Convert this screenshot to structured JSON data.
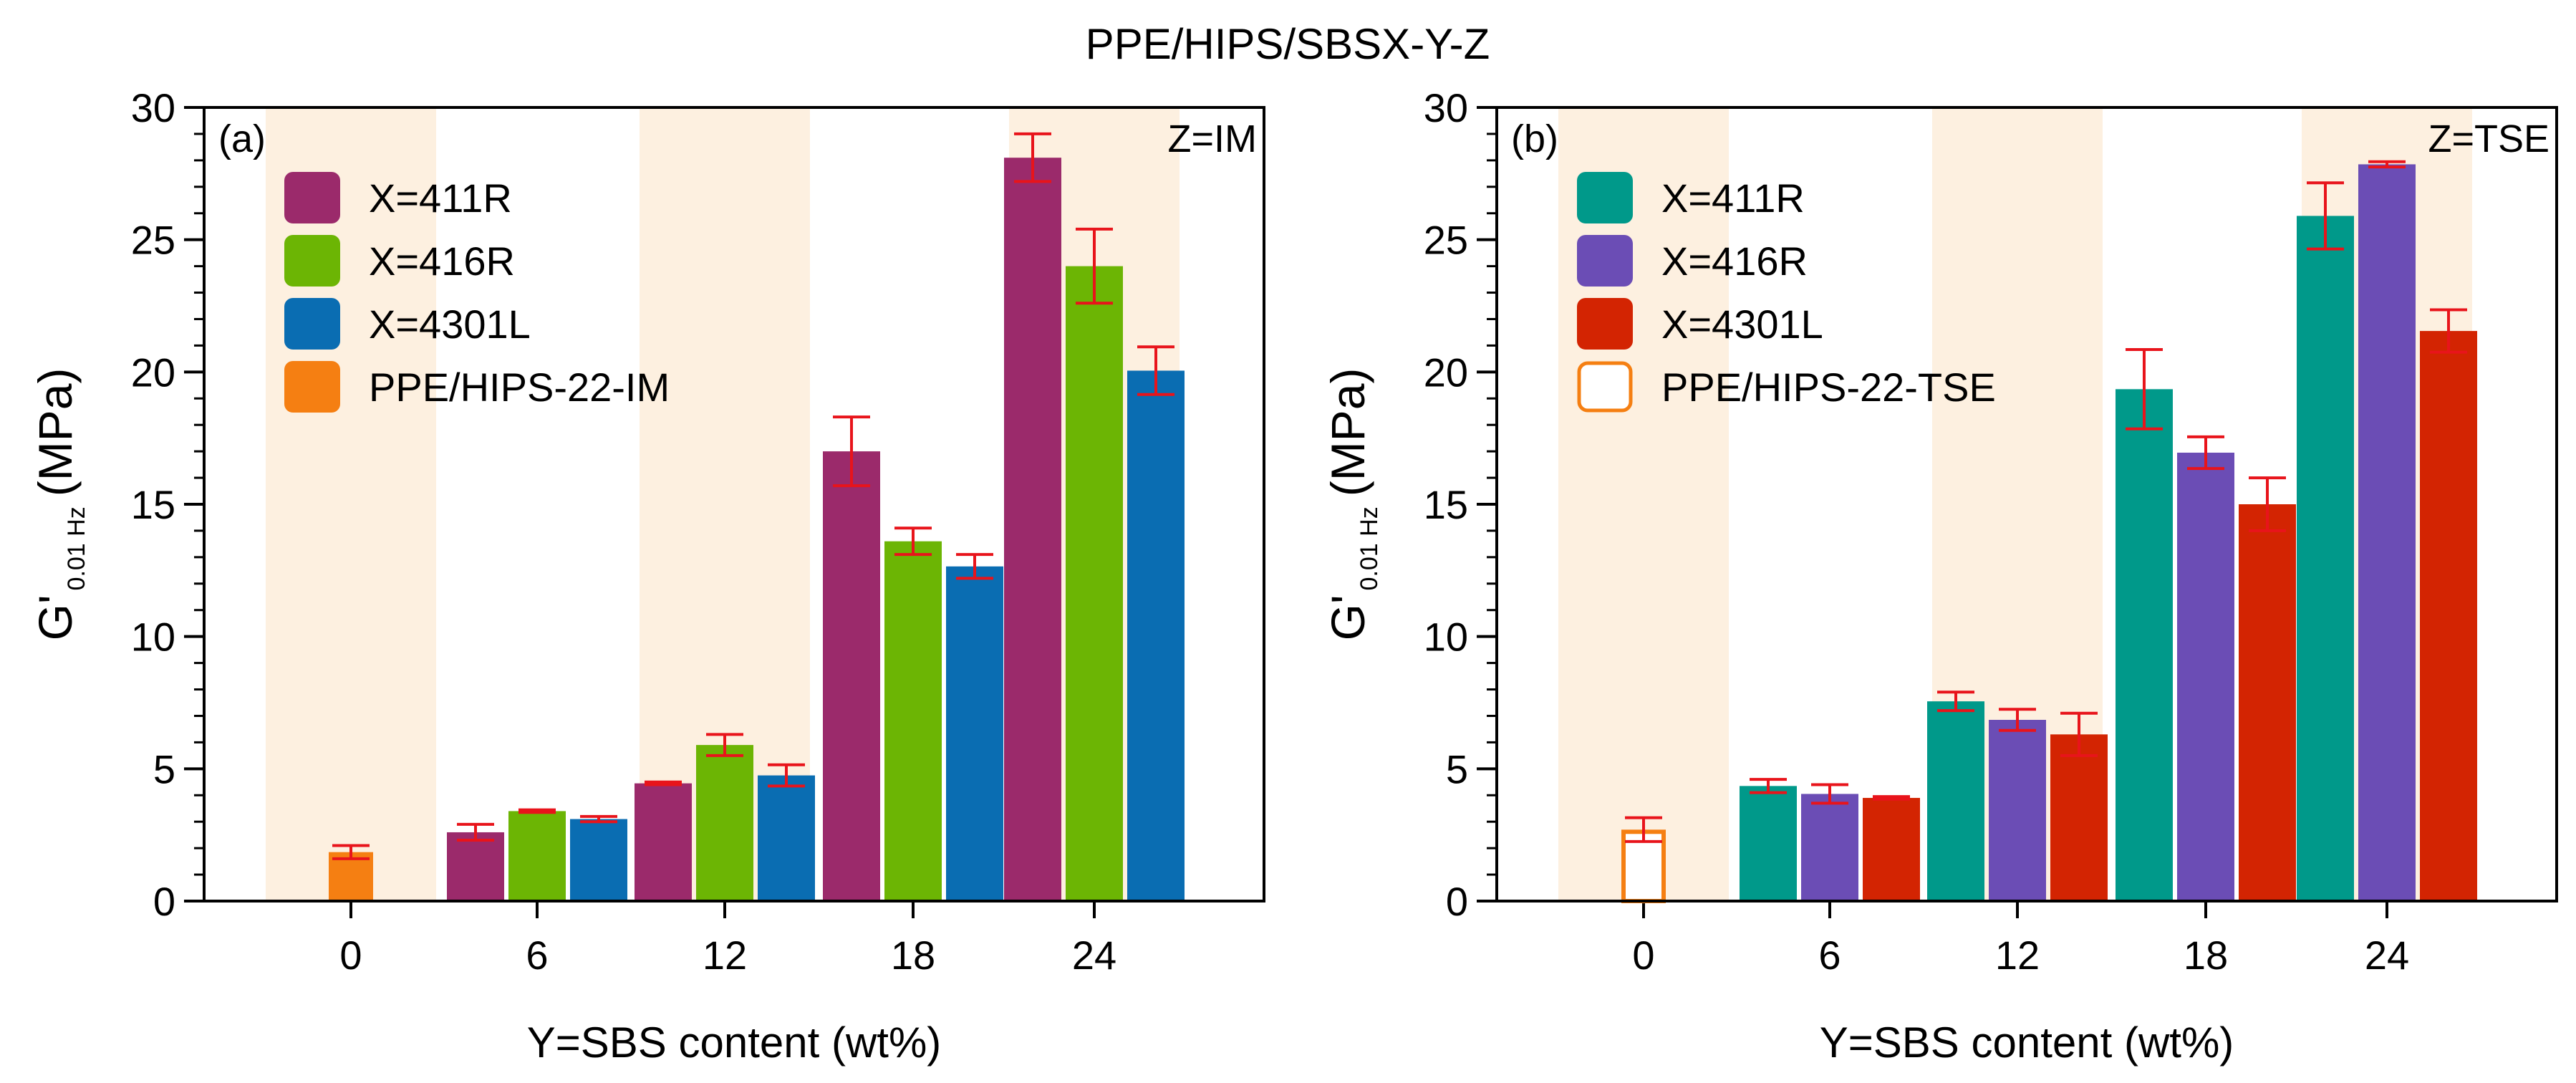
{
  "figure_title": "PPE/HIPS/SBSX-Y-Z",
  "chart_data": [
    {
      "type": "bar",
      "panel_label": "(a)",
      "corner_label": "Z=IM",
      "title": "",
      "xlabel": "Y=SBS content (wt%)",
      "ylabel_main": "G'",
      "ylabel_sub": "0.01 Hz",
      "ylabel_unit": "(MPa)",
      "ylim": [
        0,
        30
      ],
      "yticks": [
        0,
        5,
        10,
        15,
        20,
        25,
        30
      ],
      "categories": [
        "0",
        "6",
        "12",
        "18",
        "24"
      ],
      "shaded_categories": [
        "0",
        "12",
        "24"
      ],
      "shade_color": "#fdf0e0",
      "error_color": "#e8141b",
      "reference": {
        "name": "PPE/HIPS-22-IM",
        "value": 1.85,
        "error": 0.25,
        "color": "#f57f12",
        "hollow": false
      },
      "series": [
        {
          "name": "X=411R",
          "color": "#9b2a6b",
          "values": [
            null,
            2.6,
            4.45,
            17.0,
            28.1
          ],
          "errors": [
            null,
            0.3,
            0.05,
            1.3,
            0.9
          ]
        },
        {
          "name": "X=416R",
          "color": "#6cb504",
          "values": [
            null,
            3.4,
            5.9,
            13.6,
            24.0
          ],
          "errors": [
            null,
            0.05,
            0.4,
            0.5,
            1.4
          ]
        },
        {
          "name": "X=4301L",
          "color": "#0a6db2",
          "values": [
            null,
            3.1,
            4.75,
            12.65,
            20.05
          ],
          "errors": [
            null,
            0.1,
            0.4,
            0.45,
            0.9
          ]
        }
      ],
      "legend_position": "top-left"
    },
    {
      "type": "bar",
      "panel_label": "(b)",
      "corner_label": "Z=TSE",
      "title": "",
      "xlabel": "Y=SBS content (wt%)",
      "ylabel_main": "G'",
      "ylabel_sub": "0.01 Hz",
      "ylabel_unit": "(MPa)",
      "ylim": [
        0,
        30
      ],
      "yticks": [
        0,
        5,
        10,
        15,
        20,
        25,
        30
      ],
      "categories": [
        "0",
        "6",
        "12",
        "18",
        "24"
      ],
      "shaded_categories": [
        "0",
        "12",
        "24"
      ],
      "shade_color": "#fdf0e0",
      "error_color": "#e8141b",
      "reference": {
        "name": "PPE/HIPS-22-TSE",
        "value": 2.7,
        "error": 0.45,
        "color": "#f57f12",
        "hollow": true
      },
      "series": [
        {
          "name": "X=411R",
          "color": "#00998a",
          "values": [
            null,
            4.35,
            7.55,
            19.35,
            25.9
          ],
          "errors": [
            null,
            0.25,
            0.35,
            1.5,
            1.25
          ]
        },
        {
          "name": "X=416R",
          "color": "#6b4db5",
          "values": [
            null,
            4.05,
            6.85,
            16.95,
            27.85
          ],
          "errors": [
            null,
            0.35,
            0.4,
            0.6,
            0.1
          ]
        },
        {
          "name": "X=4301L",
          "color": "#d32402",
          "values": [
            null,
            3.9,
            6.3,
            15.0,
            21.55
          ],
          "errors": [
            null,
            0.05,
            0.8,
            1.0,
            0.8
          ]
        }
      ],
      "legend_position": "top-left"
    }
  ]
}
